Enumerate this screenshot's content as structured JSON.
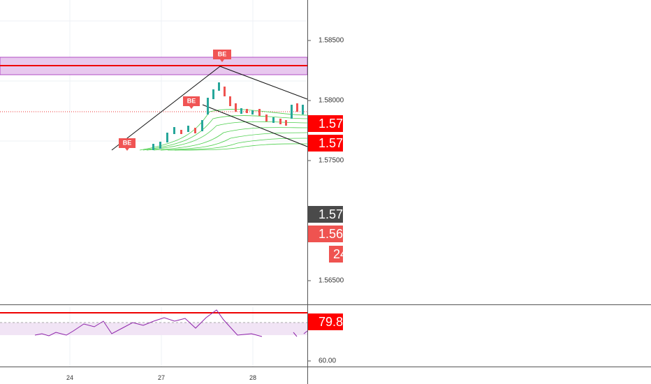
{
  "price_axis": {
    "ticks": [
      "1.58500",
      "1.58000",
      "1.57500",
      "1.56500"
    ]
  },
  "price_tags": [
    "1.57",
    "1.57",
    "1.57",
    "1.56",
    "24"
  ],
  "markers": [
    "BE",
    "BE",
    "BE"
  ],
  "indicator_axis": {
    "ticks": [
      "60.00"
    ]
  },
  "indicator_tag": "79.8",
  "time_axis": {
    "labels": [
      "24",
      "27",
      "28"
    ]
  }
}
